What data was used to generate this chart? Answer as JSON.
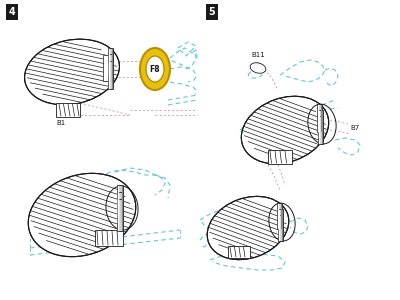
{
  "bg_color": "#ffffff",
  "label_4": "4",
  "label_5": "5",
  "label_color": "#ffffff",
  "label_bg": "#1a1a1a",
  "dark": "#1a1a1a",
  "hatch_color": "#333333",
  "cyan": "#62c8d8",
  "pink": "#d878a0",
  "ring_yellow": "#e8c010",
  "ring_yellow_inner": "#f0d050",
  "cyl_light": "#d0d0d0",
  "cyl_dark": "#888888",
  "part_f8": "F8",
  "part_b1": "B1",
  "part_b7": "B7",
  "part_b11": "B11"
}
